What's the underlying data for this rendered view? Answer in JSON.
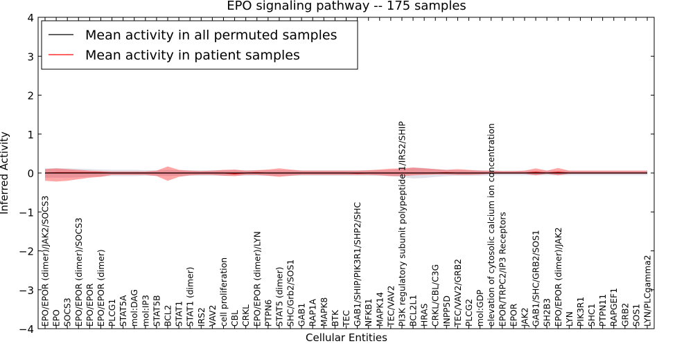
{
  "chart_data": {
    "type": "line",
    "title": "EPO signaling pathway -- 175 samples",
    "xlabel": "Cellular Entities",
    "ylabel": "Inferred Activity",
    "ylim": [
      -4,
      4
    ],
    "yticks": [
      -4,
      -3,
      -2,
      -1,
      0,
      1,
      2,
      3,
      4
    ],
    "ytick_labels": [
      "−4",
      "−3",
      "−2",
      "−1",
      "0",
      "1",
      "2",
      "3",
      "4"
    ],
    "grid": false,
    "legend_position": "top-left",
    "categories": [
      "EPO/EPOR (dimer)/JAK2/SOCS3",
      "EPO",
      "SOCS3",
      "EPO/EPOR (dimer)/SOCS3",
      "EPO/EPOR",
      "EPO/EPOR (dimer)",
      "PLCG1",
      "STAT5A",
      "mol:DAG",
      "mol:IP3",
      "STAT5B",
      "BCL2",
      "STAT1",
      "STAT1 (dimer)",
      "IRS2",
      "VAV2",
      "cell proliferation",
      "CBL",
      "CRKL",
      "EPO/EPOR (dimer)/LYN",
      "PTPN6",
      "STAT5 (dimer)",
      "SHC/Grb2/SOS1",
      "GAB1",
      "RAP1A",
      "MAPK8",
      "BTK",
      "TEC",
      "GAB1/SHIP/PIK3R1/SHP2/SHC",
      "NFKB1",
      "MAPK14",
      "TEC/VAV2",
      "PI3K regulatory subunit polypeptide 1/IRS2/SHIP",
      "BCL2L1",
      "HRAS",
      "CRKL/CBL/C3G",
      "INPP5D",
      "TEC/VAV2/GRB2",
      "PLCG2",
      "mol:GDP",
      "elevation of cytosolic calcium ion concentration",
      "EPOR/TRPC2/IP3 Receptors",
      "EPOR",
      "JAK2",
      "GAB1/SHC/GRB2/SOS1",
      "SH2B3",
      "EPO/EPOR (dimer)/JAK2",
      "LYN",
      "PIK3R1",
      "SHC1",
      "PTPN11",
      "RAPGEF1",
      "GRB2",
      "SOS1",
      "LYN/PLCgamma2"
    ],
    "series": [
      {
        "name": "Mean activity in all permuted samples",
        "color": "#000000",
        "values": [
          0.0,
          0.0,
          0.0,
          0.0,
          0.0,
          0.0,
          0.0,
          0.0,
          0.0,
          0.0,
          0.0,
          0.0,
          0.0,
          0.0,
          0.0,
          0.0,
          0.0,
          0.0,
          0.0,
          0.0,
          0.0,
          0.0,
          0.0,
          0.0,
          0.0,
          0.0,
          0.0,
          0.0,
          0.0,
          0.0,
          0.0,
          0.0,
          0.0,
          0.0,
          0.0,
          0.0,
          0.0,
          0.0,
          0.0,
          0.0,
          0.0,
          0.0,
          0.0,
          0.0,
          0.0,
          0.0,
          0.0,
          0.0,
          0.0,
          0.0,
          0.0,
          0.0,
          0.0,
          0.0,
          0.0
        ],
        "band_low": [
          -0.12,
          -0.12,
          -0.12,
          -0.11,
          -0.1,
          -0.09,
          -0.08,
          -0.08,
          -0.08,
          -0.07,
          -0.07,
          -0.08,
          -0.07,
          -0.07,
          -0.07,
          -0.07,
          -0.07,
          -0.07,
          -0.07,
          -0.07,
          -0.07,
          -0.07,
          -0.07,
          -0.07,
          -0.07,
          -0.07,
          -0.07,
          -0.07,
          -0.07,
          -0.07,
          -0.07,
          -0.08,
          -0.1,
          -0.14,
          -0.13,
          -0.1,
          -0.08,
          -0.07,
          -0.07,
          -0.07,
          -0.06,
          -0.06,
          -0.06,
          -0.06,
          -0.06,
          -0.06,
          -0.06,
          -0.06,
          -0.06,
          -0.06,
          -0.06,
          -0.06,
          -0.06,
          -0.06,
          -0.06
        ],
        "band_high": [
          0.12,
          0.12,
          0.12,
          0.11,
          0.1,
          0.09,
          0.08,
          0.08,
          0.08,
          0.07,
          0.07,
          0.08,
          0.07,
          0.07,
          0.07,
          0.07,
          0.07,
          0.07,
          0.07,
          0.07,
          0.07,
          0.07,
          0.07,
          0.07,
          0.07,
          0.07,
          0.07,
          0.07,
          0.07,
          0.07,
          0.07,
          0.08,
          0.1,
          0.14,
          0.13,
          0.1,
          0.08,
          0.07,
          0.07,
          0.07,
          0.06,
          0.06,
          0.06,
          0.06,
          0.06,
          0.06,
          0.06,
          0.06,
          0.06,
          0.06,
          0.06,
          0.06,
          0.06,
          0.06,
          0.06
        ]
      },
      {
        "name": "Mean activity in patient samples",
        "color": "#ff0000",
        "values": [
          0.0,
          0.01,
          0.01,
          0.01,
          0.01,
          0.01,
          0.0,
          0.0,
          0.0,
          0.0,
          0.0,
          0.0,
          0.0,
          0.0,
          0.0,
          0.0,
          0.0,
          -0.02,
          0.0,
          0.01,
          0.0,
          0.0,
          0.0,
          0.0,
          0.0,
          0.0,
          0.0,
          0.0,
          -0.01,
          0.0,
          0.0,
          0.0,
          0.0,
          0.0,
          0.0,
          0.0,
          0.01,
          0.0,
          0.0,
          0.0,
          0.0,
          0.0,
          0.0,
          0.0,
          0.02,
          0.0,
          0.02,
          0.0,
          0.0,
          0.0,
          0.0,
          0.0,
          0.0,
          0.0,
          0.0
        ],
        "band_low": [
          -0.2,
          -0.22,
          -0.2,
          -0.16,
          -0.12,
          -0.1,
          -0.05,
          -0.05,
          -0.05,
          -0.05,
          -0.08,
          -0.2,
          -0.1,
          -0.06,
          -0.05,
          -0.05,
          -0.07,
          -0.08,
          -0.05,
          -0.05,
          -0.07,
          -0.1,
          -0.07,
          -0.05,
          -0.05,
          -0.05,
          -0.05,
          -0.05,
          -0.05,
          -0.05,
          -0.06,
          -0.08,
          -0.08,
          -0.06,
          -0.05,
          -0.04,
          -0.04,
          -0.05,
          -0.05,
          -0.04,
          -0.02,
          -0.02,
          -0.02,
          -0.02,
          -0.06,
          -0.02,
          -0.06,
          -0.02,
          -0.02,
          -0.02,
          -0.02,
          -0.02,
          -0.02,
          -0.02,
          -0.02
        ],
        "band_high": [
          0.1,
          0.12,
          0.1,
          0.08,
          0.06,
          0.05,
          0.04,
          0.04,
          0.04,
          0.04,
          0.06,
          0.17,
          0.08,
          0.06,
          0.05,
          0.06,
          0.08,
          0.09,
          0.06,
          0.07,
          0.09,
          0.12,
          0.09,
          0.06,
          0.06,
          0.06,
          0.06,
          0.06,
          0.06,
          0.07,
          0.09,
          0.11,
          0.12,
          0.14,
          0.12,
          0.1,
          0.08,
          0.1,
          0.08,
          0.06,
          0.06,
          0.05,
          0.05,
          0.06,
          0.12,
          0.06,
          0.13,
          0.06,
          0.06,
          0.06,
          0.06,
          0.06,
          0.06,
          0.06,
          0.06
        ]
      }
    ]
  }
}
